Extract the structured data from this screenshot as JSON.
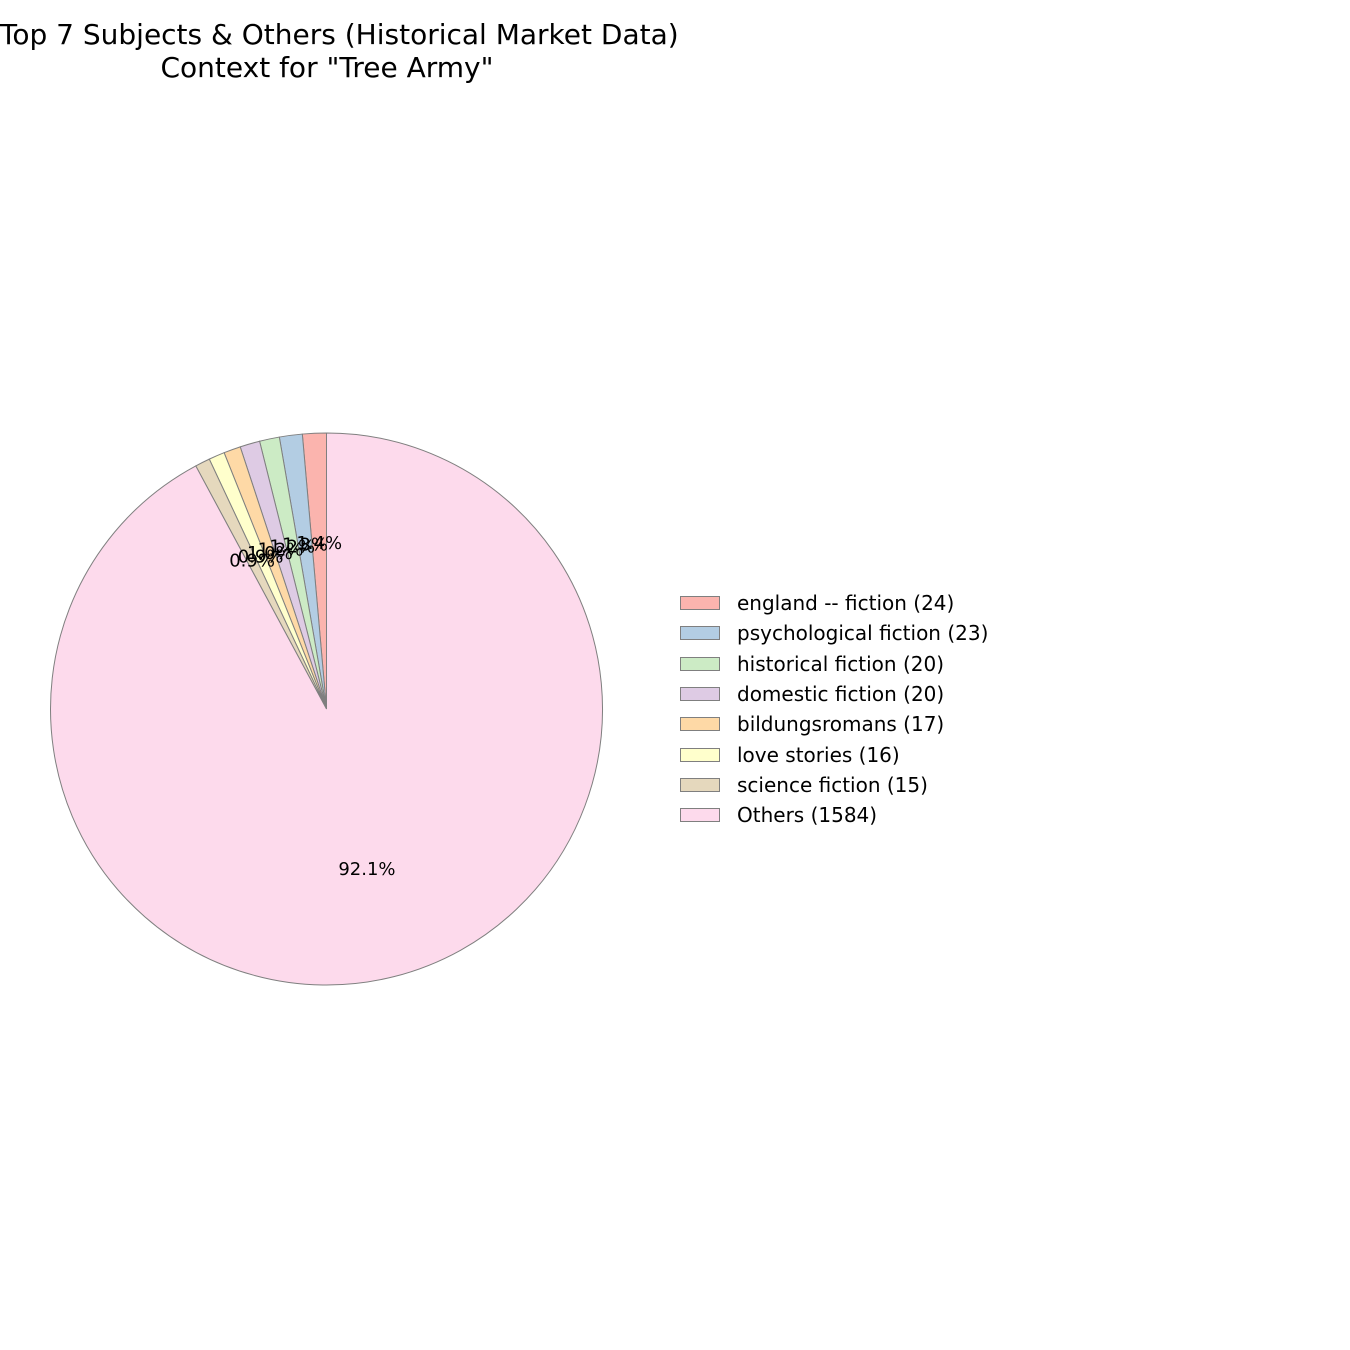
{
  "chart_data": {
    "type": "pie",
    "title_lines": [
      "Top 7 Subjects & Others (Historical Market Data)",
      "Context for \"Tree Army\""
    ],
    "categories": [
      "england -- fiction",
      "psychological fiction",
      "historical fiction",
      "domestic fiction",
      "bildungsromans",
      "love stories",
      "science fiction",
      "Others"
    ],
    "values": [
      24,
      23,
      20,
      20,
      17,
      16,
      15,
      1584
    ],
    "percent_labels": [
      "1.4%",
      "1.3%",
      "1.2%",
      "1.2%",
      "1.0%",
      "0.9%",
      "0.9%",
      "92.1%"
    ],
    "legend_labels": [
      "england -- fiction (24)",
      "psychological fiction (23)",
      "historical fiction (20)",
      "domestic fiction (20)",
      "bildungsromans (17)",
      "love stories (16)",
      "science fiction (15)",
      "Others (1584)"
    ],
    "colors": [
      "#fbb4ae",
      "#b3cde3",
      "#ccebc5",
      "#decbe4",
      "#fed9a6",
      "#ffffcc",
      "#e5d8bd",
      "#fddaec"
    ],
    "edge_color": "#7f7f7f",
    "start_angle_deg": 90,
    "direction": "counterclockwise",
    "legend_position": "right"
  }
}
